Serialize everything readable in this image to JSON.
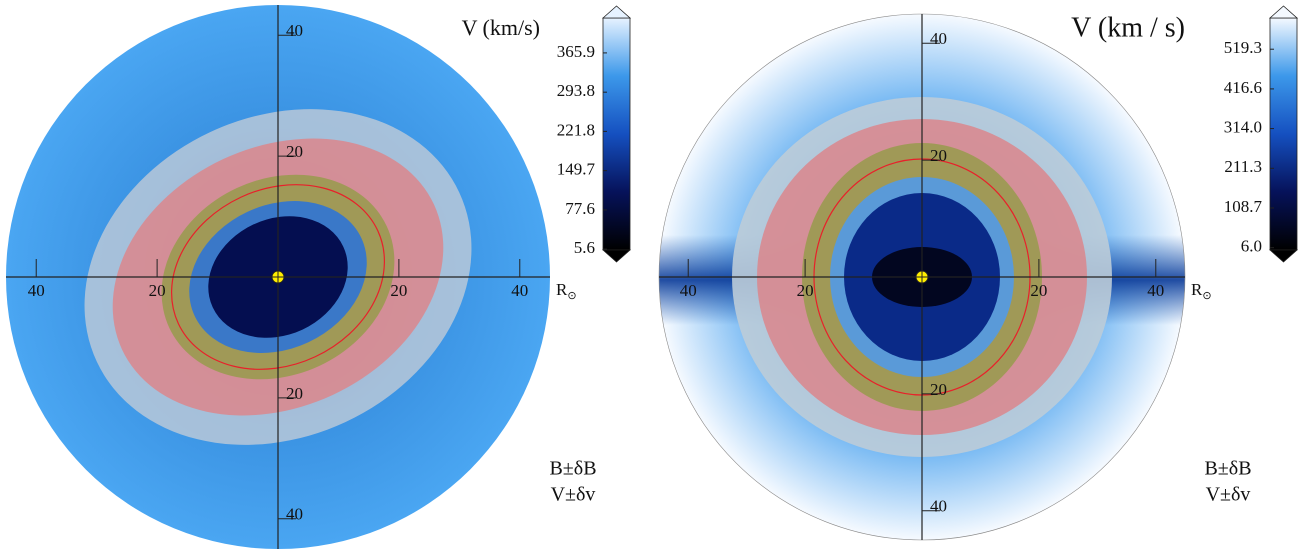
{
  "chart_data": [
    {
      "type": "polar-map",
      "title": "V (km/s)",
      "radial_label": "R",
      "radial_label_sub": "⊙",
      "xlim": [
        -45,
        45
      ],
      "ylim": [
        -45,
        45
      ],
      "xticks": [
        {
          "value": -40,
          "label": "40"
        },
        {
          "value": -20,
          "label": "20"
        },
        20,
        40
      ],
      "yticks": [
        {
          "value": -40,
          "label": "40"
        },
        {
          "value": -20,
          "label": "20"
        },
        20,
        40
      ],
      "colorbar": {
        "lim": [
          4,
          430
        ],
        "ticks": [
          5.6,
          77.6,
          149.7,
          221.8,
          293.8,
          365.9
        ],
        "colormap": [
          "#000000",
          "#06125a",
          "#1550c0",
          "#3c98ea",
          "#e6f2ff"
        ]
      },
      "legend": [
        {
          "name": "B±δB",
          "color": "#e8202a"
        },
        {
          "name": "V±δv",
          "color": "#1a8a1a"
        }
      ]
    },
    {
      "type": "polar-map",
      "title": "V (km / s)",
      "radial_label": "R",
      "radial_label_sub": "⊙",
      "xlim": [
        -45,
        45
      ],
      "ylim": [
        -45,
        45
      ],
      "xticks": [
        {
          "value": -40,
          "label": "40"
        },
        {
          "value": -20,
          "label": "20"
        },
        20,
        40
      ],
      "yticks": [
        {
          "value": -40,
          "label": "40"
        },
        {
          "value": -20,
          "label": "20"
        },
        20,
        40
      ],
      "colorbar": {
        "lim": [
          0,
          600
        ],
        "ticks": [
          {
            "value": 6,
            "label": "6.0"
          },
          108.7,
          211.3,
          {
            "value": 314,
            "label": "314.0"
          },
          416.6,
          519.3
        ],
        "colormap": [
          "#000000",
          "#06125a",
          "#1550c0",
          "#3c98ea",
          "#f4f9ff"
        ]
      },
      "legend": [
        {
          "name": "B±δB",
          "color": "#e8202a"
        },
        {
          "name": "V±δv",
          "color": "#1a8a1a"
        }
      ]
    }
  ]
}
